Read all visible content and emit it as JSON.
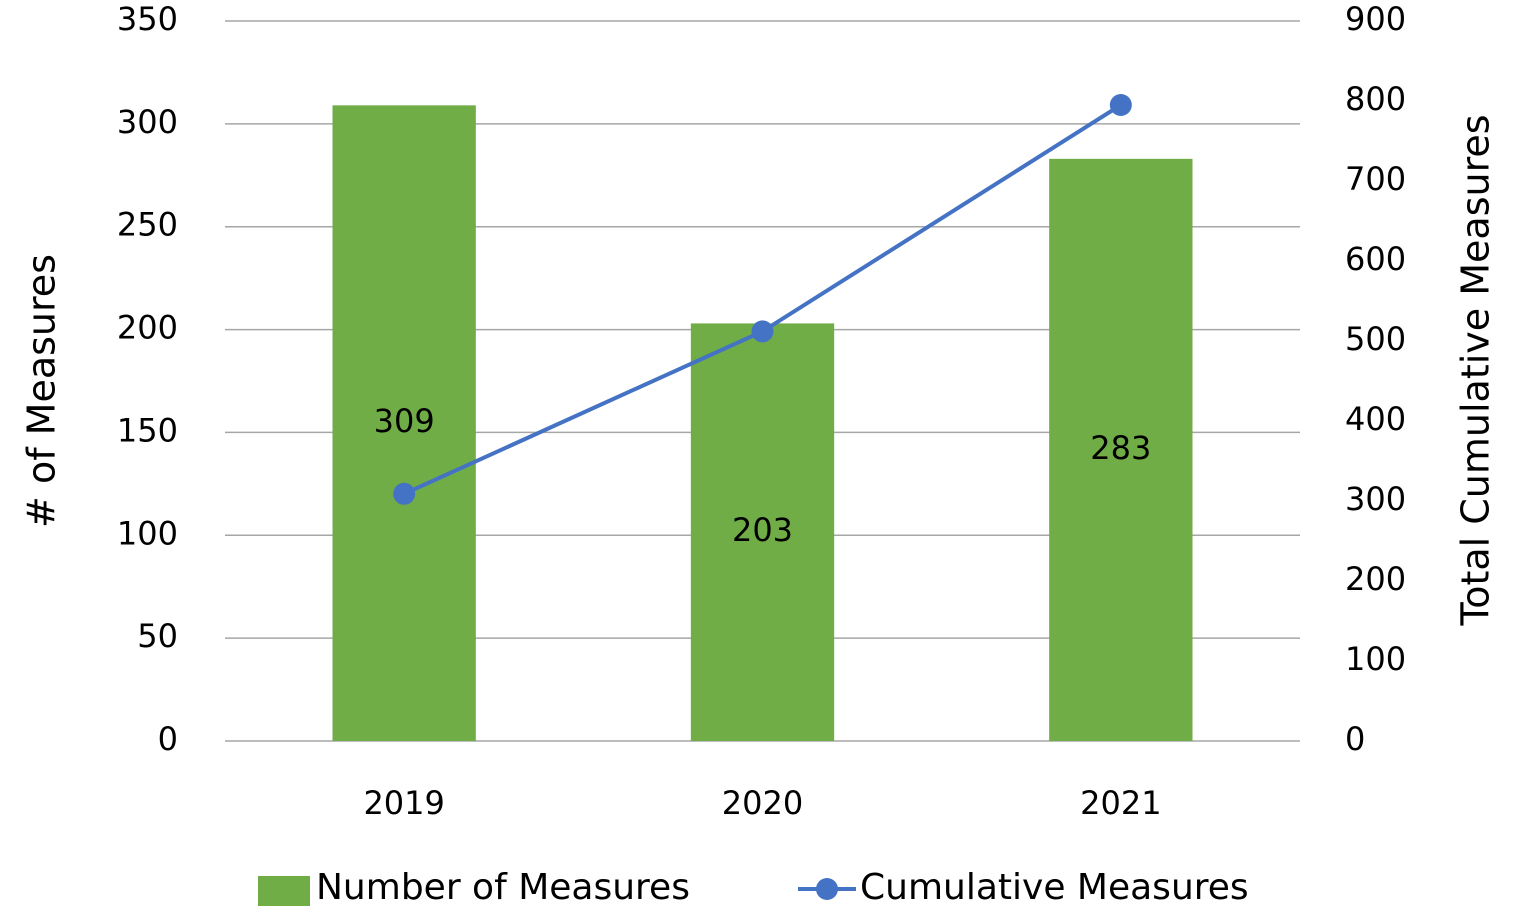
{
  "chart_data": {
    "type": "bar",
    "categories": [
      "2019",
      "2020",
      "2021"
    ],
    "series": [
      {
        "name": "Number of Measures",
        "type": "bar",
        "color": "#70ad47",
        "values": [
          309,
          203,
          283
        ]
      },
      {
        "name": "Cumulative Measures",
        "type": "line",
        "color": "#4472c4",
        "axis": "y2",
        "values": [
          309,
          512,
          795
        ]
      }
    ],
    "ylabel": "# of Measures",
    "y2label": "Total Cumulative Measures",
    "ylim": [
      0,
      350
    ],
    "yticks": [
      0,
      50,
      100,
      150,
      200,
      250,
      300,
      350
    ],
    "y2lim": [
      0,
      900
    ],
    "y2ticks": [
      0,
      100,
      200,
      300,
      400,
      500,
      600,
      700,
      800,
      900
    ],
    "grid": true,
    "legend": "bottom"
  }
}
